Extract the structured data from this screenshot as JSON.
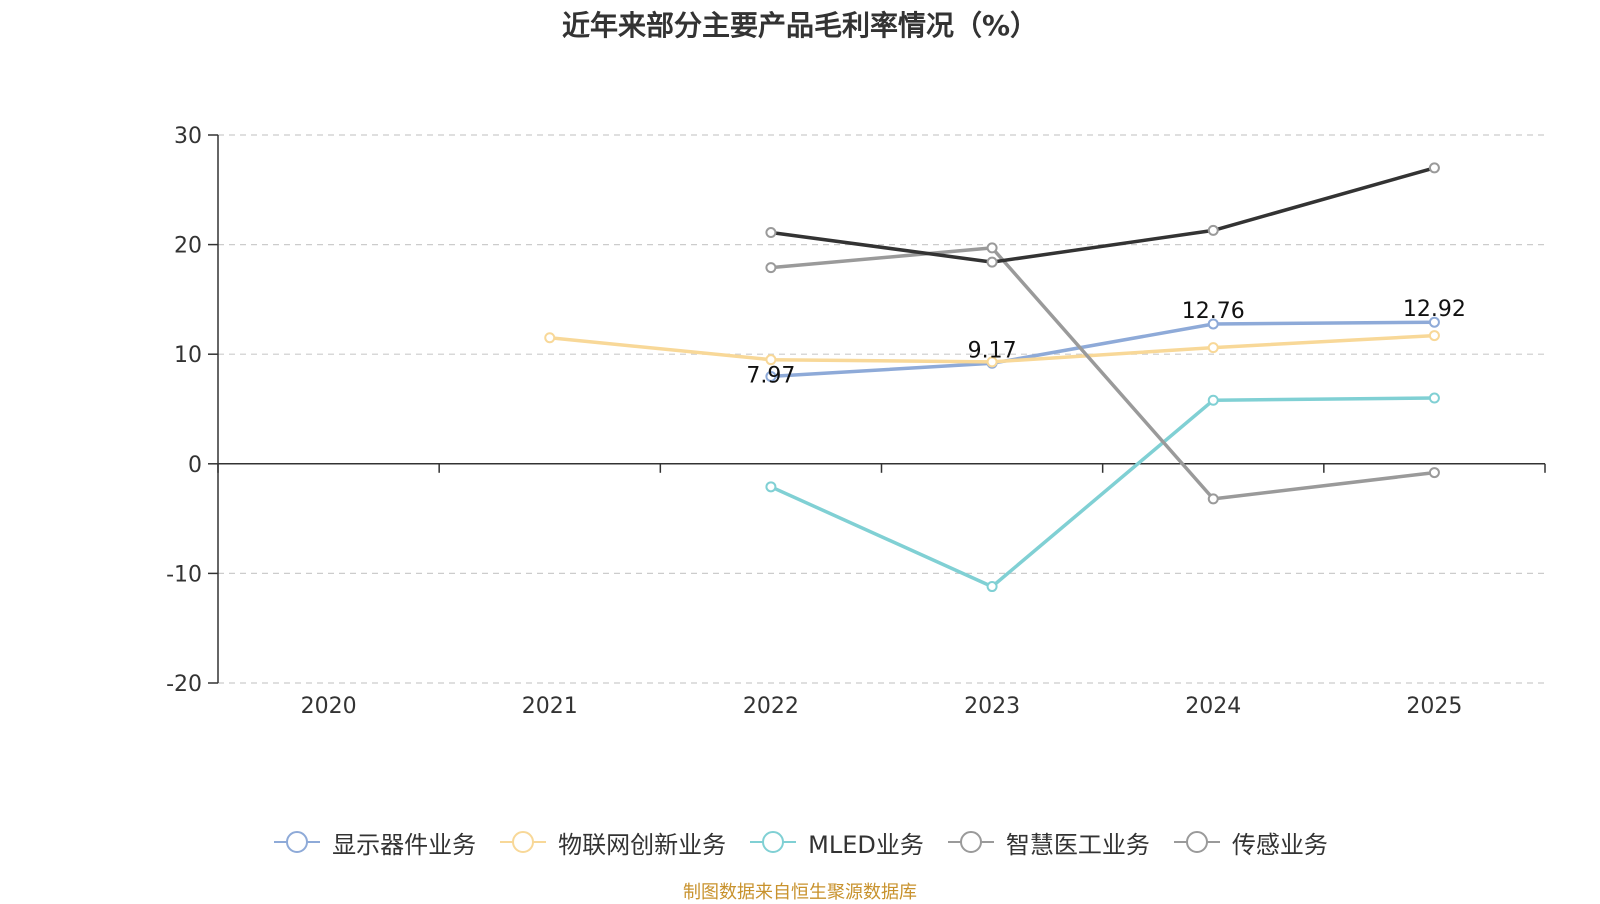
{
  "chart_data": {
    "type": "line",
    "title": "近年来部分主要产品毛利率情况（%）",
    "categories": [
      "2020",
      "2021",
      "2022",
      "2023",
      "2024",
      "2025"
    ],
    "ylim": [
      -20,
      30
    ],
    "yticks": [
      30,
      20,
      10,
      0,
      -10,
      -20
    ],
    "grid": true,
    "legend_position": "bottom-center",
    "series": [
      {
        "name": "显示器件业务",
        "color": "#8eaad8",
        "values": [
          null,
          null,
          7.97,
          9.17,
          12.76,
          12.92
        ],
        "labels": [
          null,
          null,
          "7.97",
          "9.17",
          "12.76",
          "12.92"
        ]
      },
      {
        "name": "物联网创新业务",
        "color": "#f8d898",
        "values": [
          null,
          11.5,
          9.5,
          9.3,
          10.6,
          11.7
        ],
        "labels": [
          null,
          null,
          null,
          null,
          null,
          null
        ]
      },
      {
        "name": "MLED业务",
        "color": "#80d0d4",
        "values": [
          null,
          null,
          -2.1,
          -11.2,
          5.8,
          6.0
        ],
        "labels": [
          null,
          null,
          null,
          null,
          null,
          null
        ]
      },
      {
        "name": "智慧医工业务",
        "color": "#9a9a9a",
        "values": [
          null,
          null,
          17.9,
          19.7,
          -3.2,
          -0.8
        ],
        "labels": [
          null,
          null,
          null,
          null,
          null,
          null
        ]
      },
      {
        "name": "传感业务",
        "color": "#333333",
        "legend_color": "#9a9a9a",
        "values": [
          null,
          null,
          21.1,
          18.4,
          21.3,
          27.0
        ],
        "labels": [
          null,
          null,
          null,
          null,
          null,
          null
        ]
      }
    ]
  },
  "source_note": "制图数据来自恒生聚源数据库"
}
